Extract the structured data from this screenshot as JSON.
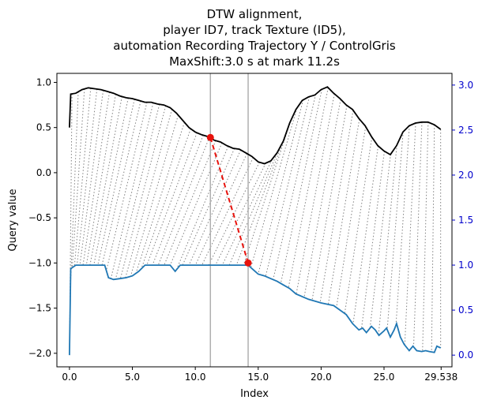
{
  "chart_data": {
    "type": "line",
    "title_lines": [
      "DTW alignment,",
      "player ID7, track Texture (ID5),",
      "automation Recording Trajectory Y / ControlGris",
      "MaxShift:3.0 s at mark 11.2s"
    ],
    "xlabel": "Index",
    "ylabel": "Query value",
    "xlim": [
      -1.0,
      30.4
    ],
    "ylim": [
      -2.15,
      1.1
    ],
    "y2lim": [
      -0.13,
      3.13
    ],
    "x_ticks": [
      0.0,
      5.0,
      10.0,
      15.0,
      20.0,
      25.0,
      29.538
    ],
    "x_tick_labels": [
      "0.0",
      "5.0",
      "10.0",
      "15.0",
      "20.0",
      "25.0",
      "29.538"
    ],
    "y_ticks": [
      1.0,
      0.5,
      0.0,
      -0.5,
      -1.0,
      -1.5,
      -2.0
    ],
    "y_tick_labels": [
      "1.0",
      "0.5",
      "0.0",
      "−0.5",
      "−1.0",
      "−1.5",
      "−2.0"
    ],
    "y2_ticks": [
      3.0,
      2.5,
      2.0,
      1.5,
      1.0,
      0.5,
      0.0
    ],
    "y2_tick_labels": [
      "3.0",
      "2.5",
      "2.0",
      "1.5",
      "1.0",
      "0.5",
      "0.0"
    ],
    "vlines": [
      11.2,
      14.2
    ],
    "highlight_pair": {
      "x1": 11.2,
      "y1": 0.39,
      "x2": 14.2,
      "y2": -1.0
    },
    "query_series": {
      "color": "#000000",
      "x": [
        0,
        0.1,
        0.5,
        1,
        1.5,
        2,
        2.5,
        3,
        3.5,
        4,
        4.5,
        5,
        5.5,
        6,
        6.5,
        7,
        7.5,
        8,
        8.5,
        9,
        9.5,
        10,
        10.5,
        11,
        11.2,
        11.5,
        12,
        12.5,
        13,
        13.5,
        14,
        14.5,
        15,
        15.5,
        16,
        16.5,
        17,
        17.5,
        18,
        18.5,
        19,
        19.5,
        20,
        20.5,
        21,
        21.5,
        22,
        22.5,
        23,
        23.5,
        24,
        24.5,
        25,
        25.5,
        26,
        26.5,
        27,
        27.5,
        28,
        28.5,
        29,
        29.5
      ],
      "y": [
        0.5,
        0.87,
        0.88,
        0.92,
        0.94,
        0.93,
        0.92,
        0.9,
        0.88,
        0.85,
        0.83,
        0.82,
        0.8,
        0.78,
        0.78,
        0.76,
        0.75,
        0.72,
        0.66,
        0.58,
        0.5,
        0.45,
        0.42,
        0.4,
        0.39,
        0.36,
        0.34,
        0.3,
        0.27,
        0.26,
        0.22,
        0.18,
        0.12,
        0.1,
        0.13,
        0.22,
        0.35,
        0.55,
        0.7,
        0.8,
        0.84,
        0.86,
        0.92,
        0.95,
        0.88,
        0.82,
        0.75,
        0.7,
        0.6,
        0.52,
        0.4,
        0.3,
        0.24,
        0.2,
        0.3,
        0.45,
        0.52,
        0.55,
        0.56,
        0.56,
        0.53,
        0.48
      ]
    },
    "reference_series": {
      "color": "#1f77b4",
      "x": [
        0,
        0.1,
        0.5,
        1,
        2,
        2.8,
        3.1,
        3.5,
        4,
        4.5,
        5,
        5.5,
        6,
        7,
        8,
        8.4,
        8.8,
        9.2,
        10,
        11,
        12,
        13,
        14,
        14.2,
        14.6,
        15,
        15.5,
        16,
        16.5,
        17,
        17.5,
        18,
        19,
        20,
        21,
        22,
        22.5,
        23,
        23.3,
        23.6,
        24,
        24.3,
        24.6,
        25,
        25.2,
        25.5,
        25.8,
        26,
        26.3,
        26.6,
        27,
        27.3,
        27.6,
        28,
        28.3,
        28.6,
        29,
        29.2,
        29.5
      ],
      "y": [
        0.0,
        0.96,
        1.0,
        1.0,
        1.0,
        1.0,
        0.86,
        0.84,
        0.85,
        0.86,
        0.88,
        0.93,
        1.0,
        1.0,
        1.0,
        0.93,
        1.0,
        1.0,
        1.0,
        1.0,
        1.0,
        1.0,
        1.0,
        1.0,
        0.95,
        0.9,
        0.88,
        0.85,
        0.82,
        0.78,
        0.74,
        0.68,
        0.62,
        0.58,
        0.55,
        0.45,
        0.35,
        0.28,
        0.3,
        0.25,
        0.32,
        0.28,
        0.22,
        0.27,
        0.3,
        0.2,
        0.28,
        0.35,
        0.2,
        0.12,
        0.05,
        0.1,
        0.05,
        0.04,
        0.05,
        0.04,
        0.03,
        0.1,
        0.08
      ]
    },
    "alignment_color": "#808080",
    "highlight_color": "#e8120c",
    "right_axis_color": "#0000cc"
  }
}
